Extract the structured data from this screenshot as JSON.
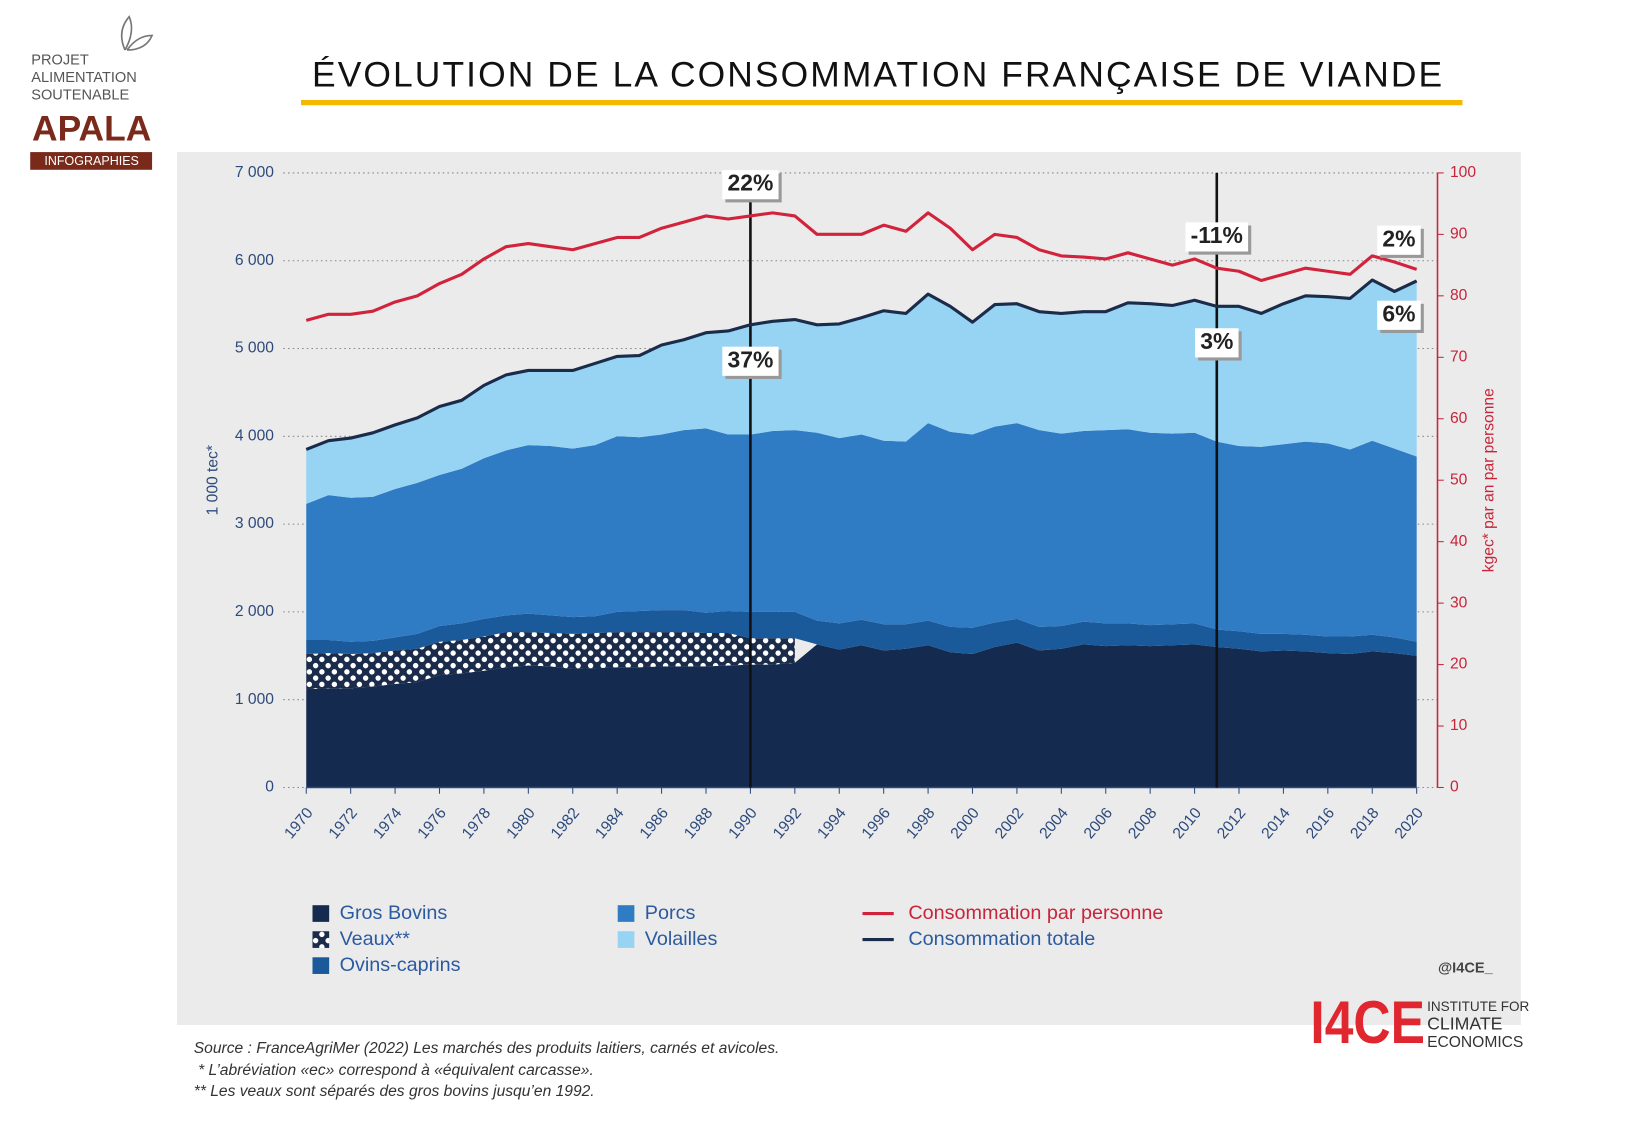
{
  "header": {
    "title": "ÉVOLUTION DE LA CONSOMMATION FRANÇAISE DE VIANDE",
    "logo": [
      "PROJET",
      "ALIMENTATION",
      "SOUTENABLE"
    ],
    "brand": "APALA",
    "brand_sub": "INFOGRAPHIES"
  },
  "chart_data": {
    "type": "stacked_area",
    "ylabel": "1 000 tec*",
    "y2label": "kgec* par an par personne",
    "x": [
      1970,
      1971,
      1972,
      1973,
      1974,
      1975,
      1976,
      1977,
      1978,
      1979,
      1980,
      1981,
      1982,
      1983,
      1984,
      1985,
      1986,
      1987,
      1988,
      1989,
      1990,
      1991,
      1992,
      1993,
      1994,
      1995,
      1996,
      1997,
      1998,
      1999,
      2000,
      2001,
      2002,
      2003,
      2004,
      2005,
      2006,
      2007,
      2008,
      2009,
      2010,
      2011,
      2012,
      2013,
      2014,
      2015,
      2016,
      2017,
      2018,
      2019,
      2020
    ],
    "xlim": [
      1970,
      2020
    ],
    "xticks": [
      1970,
      1972,
      1974,
      1976,
      1978,
      1980,
      1982,
      1984,
      1986,
      1988,
      1990,
      1992,
      1994,
      1996,
      1998,
      2000,
      2002,
      2004,
      2006,
      2008,
      2010,
      2012,
      2014,
      2016,
      2018,
      2020
    ],
    "ylim": [
      0,
      7000
    ],
    "yticks": [
      0,
      {
        "value": 1000,
        "label": "1 000"
      },
      {
        "value": 2000,
        "label": "2 000"
      },
      {
        "value": 3000,
        "label": "3 000"
      },
      {
        "value": 4000,
        "label": "4 000"
      },
      {
        "value": 5000,
        "label": "5 000"
      },
      {
        "value": 6000,
        "label": "6 000"
      },
      {
        "value": 7000,
        "label": "7 000"
      }
    ],
    "y2lim": [
      0,
      100
    ],
    "y2ticks": [
      0,
      10,
      20,
      30,
      40,
      50,
      60,
      70,
      80,
      90,
      100
    ],
    "grid": true,
    "series": [
      {
        "name": "Gros Bovins",
        "kind": "area",
        "color": "#142a4f",
        "values": [
          1120,
          1130,
          1130,
          1150,
          1180,
          1200,
          1280,
          1300,
          1330,
          1370,
          1390,
          1380,
          1350,
          1360,
          1370,
          1370,
          1380,
          1380,
          1380,
          1390,
          1400,
          1400,
          1420,
          1630,
          1570,
          1620,
          1560,
          1580,
          1620,
          1540,
          1520,
          1600,
          1650,
          1560,
          1580,
          1630,
          1610,
          1620,
          1610,
          1620,
          1630,
          1600,
          1580,
          1550,
          1560,
          1550,
          1530,
          1520,
          1550,
          1530,
          1500
        ]
      },
      {
        "name": "Veaux**",
        "kind": "area",
        "color": "#1b2c4a",
        "hatch": "dots",
        "values": [
          400,
          400,
          390,
          380,
          380,
          380,
          380,
          380,
          390,
          400,
          380,
          380,
          400,
          400,
          400,
          400,
          390,
          390,
          380,
          370,
          300,
          300,
          280,
          null,
          null,
          null,
          null,
          null,
          null,
          null,
          null,
          null,
          null,
          null,
          null,
          null,
          null,
          null,
          null,
          null,
          null,
          null,
          null,
          null,
          null,
          null,
          null,
          null,
          null,
          null,
          null
        ]
      },
      {
        "name": "Ovins-caprins",
        "kind": "area",
        "color": "#1a5a9a",
        "values": [
          160,
          150,
          140,
          140,
          150,
          170,
          180,
          190,
          200,
          190,
          210,
          200,
          190,
          190,
          230,
          240,
          250,
          250,
          230,
          250,
          300,
          300,
          300,
          270,
          300,
          290,
          300,
          280,
          280,
          290,
          300,
          280,
          270,
          270,
          260,
          260,
          260,
          250,
          240,
          240,
          240,
          200,
          200,
          200,
          190,
          190,
          190,
          200,
          190,
          180,
          160
        ]
      },
      {
        "name": "Porcs",
        "kind": "area",
        "color": "#2f7cc4",
        "values": [
          1550,
          1650,
          1640,
          1640,
          1690,
          1720,
          1720,
          1760,
          1830,
          1880,
          1920,
          1930,
          1920,
          1950,
          2000,
          1980,
          2000,
          2050,
          2100,
          2010,
          2020,
          2060,
          2070,
          2140,
          2110,
          2110,
          2090,
          2080,
          2250,
          2220,
          2200,
          2230,
          2230,
          2240,
          2190,
          2170,
          2200,
          2210,
          2190,
          2170,
          2170,
          2140,
          2110,
          2130,
          2160,
          2200,
          2200,
          2130,
          2210,
          2150,
          2110
        ]
      },
      {
        "name": "Volailles",
        "kind": "area",
        "color": "#97d3f2",
        "values": [
          620,
          620,
          680,
          730,
          730,
          740,
          780,
          780,
          830,
          860,
          850,
          860,
          890,
          930,
          910,
          930,
          1020,
          1030,
          1090,
          1180,
          1250,
          1250,
          1260,
          1230,
          1300,
          1330,
          1480,
          1460,
          1470,
          1430,
          1280,
          1390,
          1360,
          1350,
          1370,
          1360,
          1350,
          1440,
          1470,
          1460,
          1510,
          1540,
          1590,
          1520,
          1600,
          1660,
          1670,
          1720,
          1830,
          1790,
          2000
        ]
      },
      {
        "name": "Consommation par personne",
        "kind": "line",
        "axis": "y2",
        "color": "#d2233c",
        "values": [
          76,
          77,
          77,
          77.5,
          79,
          80,
          82,
          83.5,
          86,
          88,
          88.5,
          88,
          87.5,
          88.5,
          89.5,
          89.5,
          91,
          92,
          93,
          92.5,
          93,
          93.5,
          93,
          90,
          90,
          90,
          91.5,
          90.5,
          93.5,
          91,
          87.5,
          90,
          89.5,
          87.5,
          86.5,
          86.3,
          86,
          87,
          86,
          85,
          86,
          84.5,
          84,
          82.5,
          83.5,
          84.5,
          84,
          83.5,
          86.5,
          85.5,
          84.3
        ]
      },
      {
        "name": "Consommation totale",
        "kind": "line",
        "color": "#1b2c4a",
        "values": [
          3850,
          3950,
          3980,
          4040,
          4130,
          4210,
          4340,
          4410,
          4580,
          4700,
          4750,
          4750,
          4750,
          4830,
          4910,
          4920,
          5040,
          5100,
          5180,
          5200,
          5270,
          5310,
          5330,
          5270,
          5280,
          5350,
          5430,
          5400,
          5620,
          5480,
          5300,
          5500,
          5510,
          5420,
          5400,
          5420,
          5420,
          5520,
          5510,
          5490,
          5550,
          5480,
          5480,
          5400,
          5510,
          5600,
          5590,
          5570,
          5780,
          5650,
          5770
        ]
      }
    ],
    "markers": [
      {
        "x": 1990,
        "line": true,
        "labels": [
          "22%",
          "37%"
        ]
      },
      {
        "x": 2011,
        "line": true,
        "labels": [
          "-11%",
          "3%"
        ]
      },
      {
        "x": 2020,
        "line": false,
        "labels": [
          "2%",
          "6%"
        ]
      }
    ],
    "credit": "@I4CE_"
  },
  "footer": {
    "sources": [
      "Source : FranceAgriMer (2022) Les marchés des produits laitiers, carnés et avicoles.",
      " * L’abréviation «ec» correspond à «équivalent carcasse».",
      "** Les veaux sont séparés des gros bovins jusqu’en 1992."
    ],
    "org": "I4CE",
    "org_name": [
      "INSTITUTE FOR",
      "CLIMATE",
      "ECONOMICS"
    ]
  }
}
